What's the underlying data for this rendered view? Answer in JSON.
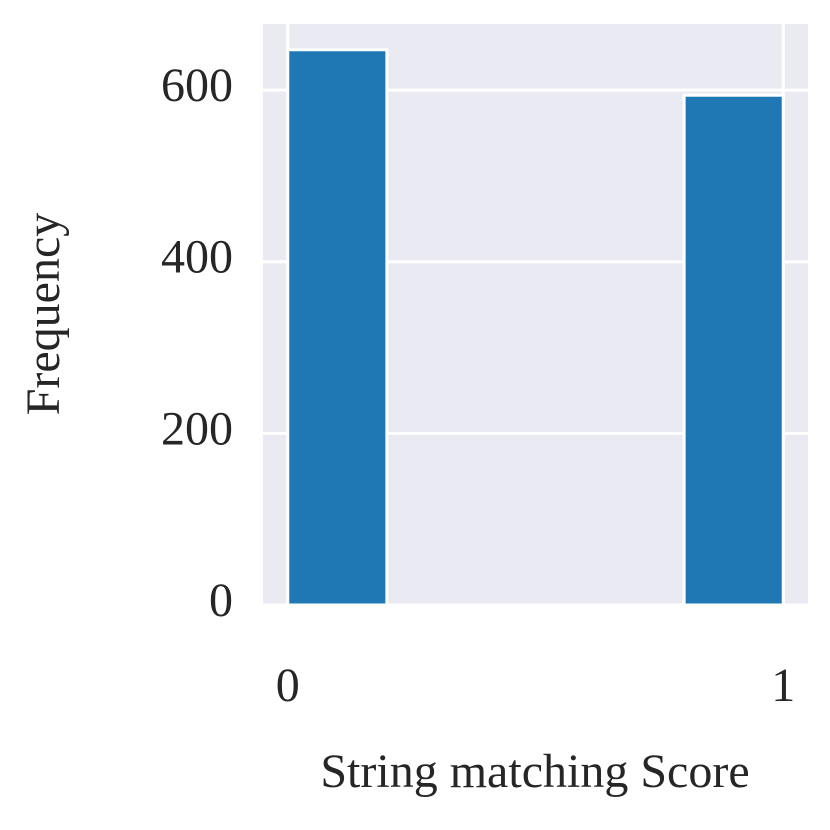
{
  "chart_data": {
    "type": "histogram",
    "xlabel": "String matching Score",
    "ylabel": "Frequency",
    "bins": [
      0,
      0.2,
      0.4,
      0.6,
      0.8,
      1.0
    ],
    "counts": [
      647,
      0,
      0,
      0,
      594
    ],
    "color": "#1f77b4",
    "xlim": [
      -0.05,
      1.05
    ],
    "xticks": [
      0,
      1
    ],
    "ylim": [
      0,
      677
    ],
    "yticks": [
      0,
      200,
      400,
      600
    ],
    "grid": true
  }
}
